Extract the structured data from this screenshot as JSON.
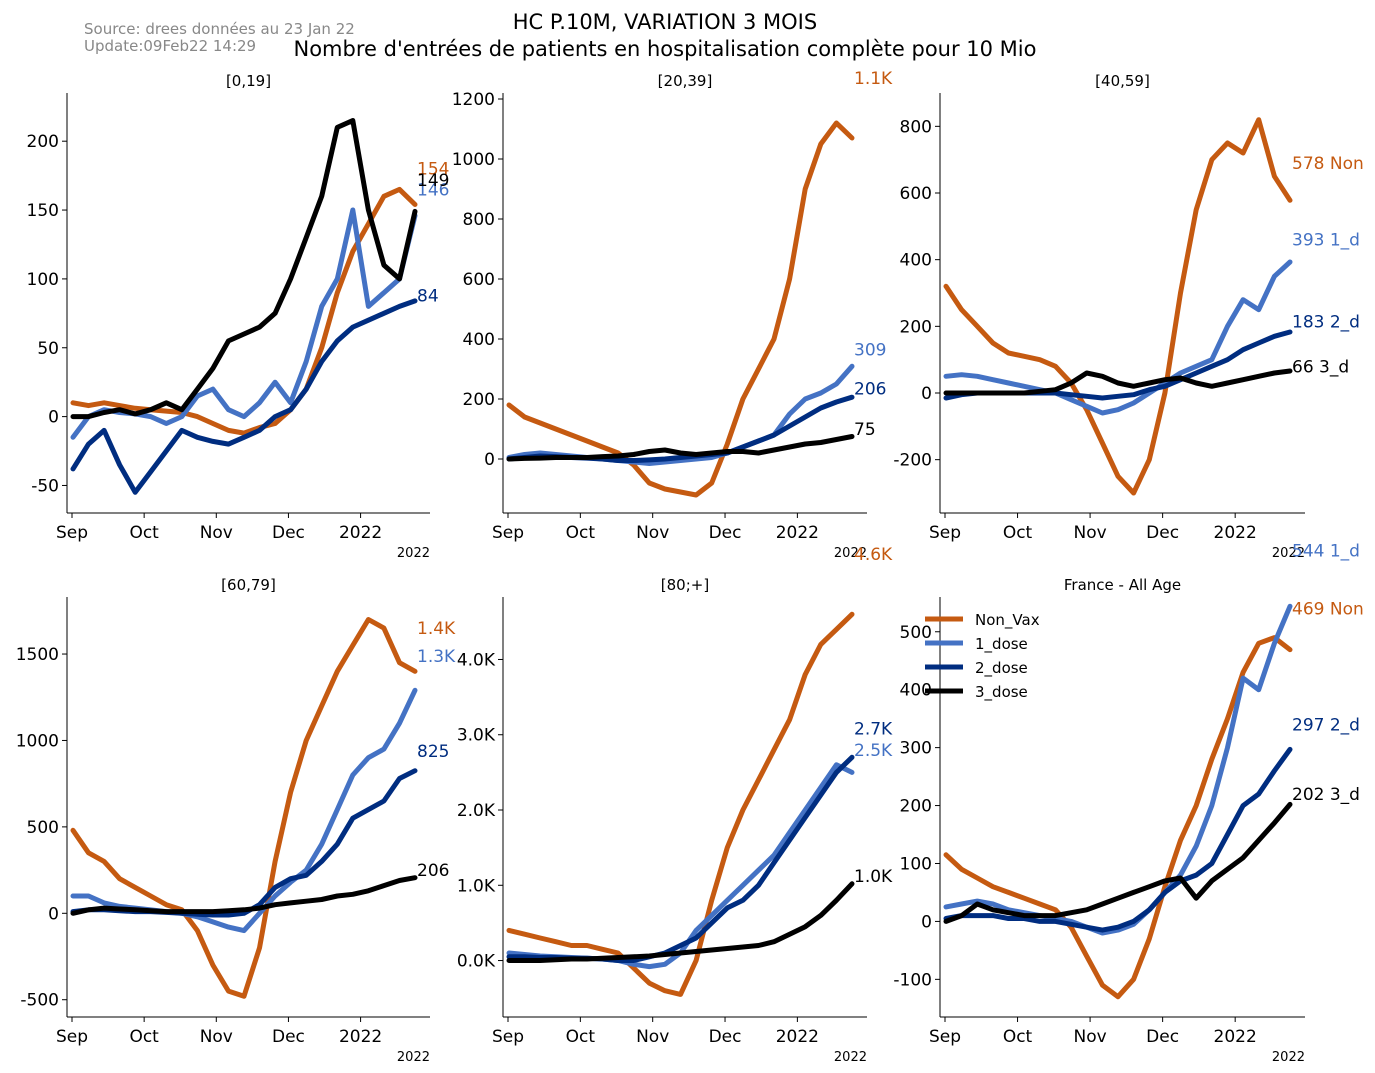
{
  "header": {
    "source_line1": "Source: drees données au 23 Jan 22",
    "source_line2": "Update:09Feb22 14:29",
    "title_line1": "HC P.10M, VARIATION 3 MOIS",
    "title_line2": "Nombre d'entrées de patients en hospitalisation complète pour 10 Mio"
  },
  "colors": {
    "Non_Vax": "#c55a11",
    "1_dose": "#4472c4",
    "2_dose": "#002d80",
    "3_dose": "#000000"
  },
  "legend": {
    "placement": "upper-left of France - All Age panel",
    "entries": [
      "Non_Vax",
      "1_dose",
      "2_dose",
      "3_dose"
    ]
  },
  "chart_data": [
    {
      "type": "line",
      "title": "[0,19]",
      "x_ticks": [
        "Sep",
        "Oct",
        "Nov",
        "Dec",
        "2022"
      ],
      "x_offset_label": "2022",
      "ylim": [
        -70,
        235
      ],
      "y_ticks": [
        {
          "v": -50,
          "l": "-50"
        },
        {
          "v": 0,
          "l": "0"
        },
        {
          "v": 50,
          "l": "50"
        },
        {
          "v": 100,
          "l": "100"
        },
        {
          "v": 150,
          "l": "150"
        },
        {
          "v": 200,
          "l": "200"
        }
      ],
      "series": [
        {
          "name": "Non_Vax",
          "values": [
            10,
            8,
            10,
            8,
            6,
            5,
            4,
            3,
            0,
            -5,
            -10,
            -12,
            -8,
            -5,
            5,
            20,
            50,
            90,
            120,
            140,
            160,
            165,
            154
          ],
          "end_label": "154",
          "end_label_value": 180
        },
        {
          "name": "1_dose",
          "values": [
            -15,
            0,
            5,
            3,
            2,
            0,
            -5,
            0,
            15,
            20,
            5,
            0,
            10,
            25,
            10,
            40,
            80,
            100,
            150,
            80,
            90,
            100,
            146
          ],
          "end_label": "146",
          "end_label_value": 165
        },
        {
          "name": "2_dose",
          "values": [
            -38,
            -20,
            -10,
            -35,
            -55,
            -40,
            -25,
            -10,
            -15,
            -18,
            -20,
            -15,
            -10,
            0,
            5,
            20,
            40,
            55,
            65,
            70,
            75,
            80,
            84
          ],
          "end_label": "84",
          "end_label_value": 88
        },
        {
          "name": "3_dose",
          "values": [
            0,
            0,
            3,
            5,
            2,
            5,
            10,
            5,
            20,
            35,
            55,
            60,
            65,
            75,
            100,
            130,
            160,
            210,
            215,
            150,
            110,
            100,
            149
          ],
          "end_label": "149",
          "end_label_value": 172
        }
      ]
    },
    {
      "type": "line",
      "title": "[20,39]",
      "x_ticks": [
        "Sep",
        "Oct",
        "Nov",
        "Dec",
        "2022"
      ],
      "x_offset_label": "2022",
      "ylim": [
        -180,
        1220
      ],
      "y_ticks": [
        {
          "v": 0,
          "l": "0"
        },
        {
          "v": 200,
          "l": "200"
        },
        {
          "v": 400,
          "l": "400"
        },
        {
          "v": 600,
          "l": "600"
        },
        {
          "v": 800,
          "l": "800"
        },
        {
          "v": 1000,
          "l": "1000"
        },
        {
          "v": 1200,
          "l": "1200"
        }
      ],
      "series": [
        {
          "name": "Non_Vax",
          "values": [
            180,
            140,
            120,
            100,
            80,
            60,
            40,
            20,
            -20,
            -80,
            -100,
            -110,
            -120,
            -80,
            50,
            200,
            300,
            400,
            600,
            900,
            1050,
            1120,
            1070
          ],
          "end_label": "1.1K",
          "end_label_value": 1270
        },
        {
          "name": "1_dose",
          "values": [
            5,
            15,
            20,
            15,
            10,
            5,
            0,
            -5,
            -10,
            -15,
            -10,
            -5,
            0,
            5,
            20,
            40,
            60,
            80,
            150,
            200,
            220,
            250,
            309
          ],
          "end_label": "309",
          "end_label_value": 365
        },
        {
          "name": "2_dose",
          "values": [
            0,
            5,
            10,
            8,
            5,
            3,
            0,
            -5,
            -5,
            -3,
            0,
            5,
            10,
            15,
            20,
            40,
            60,
            80,
            110,
            140,
            170,
            190,
            206
          ],
          "end_label": "206",
          "end_label_value": 235
        },
        {
          "name": "3_dose",
          "values": [
            0,
            2,
            3,
            5,
            5,
            5,
            8,
            10,
            15,
            25,
            30,
            20,
            15,
            20,
            25,
            25,
            20,
            30,
            40,
            50,
            55,
            65,
            75
          ],
          "end_label": "75",
          "end_label_value": 100
        }
      ]
    },
    {
      "type": "line",
      "title": "[40,59]",
      "x_ticks": [
        "Sep",
        "Oct",
        "Nov",
        "Dec",
        "2022"
      ],
      "x_offset_label": "2022",
      "ylim": [
        -360,
        900
      ],
      "y_ticks": [
        {
          "v": -200,
          "l": "-200"
        },
        {
          "v": 0,
          "l": "0"
        },
        {
          "v": 200,
          "l": "200"
        },
        {
          "v": 400,
          "l": "400"
        },
        {
          "v": 600,
          "l": "600"
        },
        {
          "v": 800,
          "l": "800"
        }
      ],
      "series": [
        {
          "name": "Non_Vax",
          "values": [
            320,
            250,
            200,
            150,
            120,
            110,
            100,
            80,
            30,
            -50,
            -150,
            -250,
            -300,
            -200,
            0,
            300,
            550,
            700,
            750,
            720,
            820,
            650,
            578
          ],
          "end_label": "578 Non",
          "end_label_value": 690
        },
        {
          "name": "1_dose",
          "values": [
            50,
            55,
            50,
            40,
            30,
            20,
            10,
            0,
            -20,
            -40,
            -60,
            -50,
            -30,
            0,
            30,
            60,
            80,
            100,
            200,
            280,
            250,
            350,
            393
          ],
          "end_label": "393 1_d",
          "end_label_value": 460
        },
        {
          "name": "2_dose",
          "values": [
            -15,
            -5,
            0,
            0,
            0,
            0,
            0,
            0,
            -5,
            -10,
            -15,
            -10,
            -5,
            10,
            20,
            40,
            60,
            80,
            100,
            130,
            150,
            170,
            183
          ],
          "end_label": "183 2_d",
          "end_label_value": 215
        },
        {
          "name": "3_dose",
          "values": [
            0,
            0,
            0,
            0,
            0,
            0,
            5,
            10,
            30,
            60,
            50,
            30,
            20,
            30,
            40,
            45,
            30,
            20,
            30,
            40,
            50,
            60,
            66
          ],
          "end_label": "66 3_d",
          "end_label_value": 80
        }
      ]
    },
    {
      "type": "line",
      "title": "[60,79]",
      "x_ticks": [
        "Sep",
        "Oct",
        "Nov",
        "Dec",
        "2022"
      ],
      "x_offset_label": "2022",
      "ylim": [
        -600,
        1830
      ],
      "y_ticks": [
        {
          "v": -500,
          "l": "-500"
        },
        {
          "v": 0,
          "l": "0"
        },
        {
          "v": 500,
          "l": "500"
        },
        {
          "v": 1000,
          "l": "1000"
        },
        {
          "v": 1500,
          "l": "1500"
        }
      ],
      "series": [
        {
          "name": "Non_Vax",
          "values": [
            480,
            350,
            300,
            200,
            150,
            100,
            50,
            20,
            -100,
            -300,
            -450,
            -480,
            -200,
            300,
            700,
            1000,
            1200,
            1400,
            1550,
            1700,
            1650,
            1450,
            1400
          ],
          "end_label": "1.4K",
          "end_label_value": 1650
        },
        {
          "name": "1_dose",
          "values": [
            100,
            100,
            60,
            40,
            30,
            20,
            10,
            0,
            -20,
            -50,
            -80,
            -100,
            0,
            100,
            180,
            250,
            400,
            600,
            800,
            900,
            950,
            1100,
            1290
          ],
          "end_label": "1.3K",
          "end_label_value": 1490
        },
        {
          "name": "2_dose",
          "values": [
            10,
            20,
            20,
            15,
            10,
            10,
            5,
            0,
            -5,
            -10,
            -10,
            0,
            50,
            150,
            200,
            220,
            300,
            400,
            550,
            600,
            650,
            780,
            825
          ],
          "end_label": "825",
          "end_label_value": 940
        },
        {
          "name": "3_dose",
          "values": [
            0,
            20,
            30,
            25,
            20,
            15,
            10,
            10,
            10,
            10,
            15,
            20,
            30,
            50,
            60,
            70,
            80,
            100,
            110,
            130,
            160,
            190,
            206
          ],
          "end_label": "206",
          "end_label_value": 250
        }
      ]
    },
    {
      "type": "line",
      "title": "[80;+]",
      "x_ticks": [
        "Sep",
        "Oct",
        "Nov",
        "Dec",
        "2022"
      ],
      "x_offset_label": "2022",
      "ylim": [
        -750,
        4830
      ],
      "y_ticks": [
        {
          "v": 0,
          "l": "0.0K"
        },
        {
          "v": 1000,
          "l": "1.0K"
        },
        {
          "v": 2000,
          "l": "2.0K"
        },
        {
          "v": 3000,
          "l": "3.0K"
        },
        {
          "v": 4000,
          "l": "4.0K"
        }
      ],
      "series": [
        {
          "name": "Non_Vax",
          "values": [
            400,
            350,
            300,
            250,
            200,
            200,
            150,
            100,
            -100,
            -300,
            -400,
            -450,
            0,
            800,
            1500,
            2000,
            2400,
            2800,
            3200,
            3800,
            4200,
            4400,
            4600
          ],
          "end_label": "4.6K",
          "end_label_value": 5400
        },
        {
          "name": "1_dose",
          "values": [
            100,
            80,
            60,
            50,
            40,
            30,
            20,
            0,
            -50,
            -80,
            -50,
            100,
            400,
            600,
            800,
            1000,
            1200,
            1400,
            1700,
            2000,
            2300,
            2600,
            2500
          ],
          "end_label": "2.5K",
          "end_label_value": 2800
        },
        {
          "name": "2_dose",
          "values": [
            50,
            50,
            40,
            40,
            30,
            30,
            20,
            0,
            0,
            50,
            100,
            200,
            300,
            500,
            700,
            800,
            1000,
            1300,
            1600,
            1900,
            2200,
            2500,
            2700
          ],
          "end_label": "2.7K",
          "end_label_value": 3080
        },
        {
          "name": "3_dose",
          "values": [
            0,
            0,
            0,
            10,
            20,
            20,
            30,
            40,
            50,
            60,
            80,
            100,
            120,
            140,
            160,
            180,
            200,
            250,
            350,
            450,
            600,
            800,
            1020
          ],
          "end_label": "1.0K",
          "end_label_value": 1120
        }
      ]
    },
    {
      "type": "line",
      "title": "France - All Age",
      "x_ticks": [
        "Sep",
        "Oct",
        "Nov",
        "Dec",
        "2022"
      ],
      "x_offset_label": "2022",
      "ylim": [
        -165,
        560
      ],
      "y_ticks": [
        {
          "v": -100,
          "l": "-100"
        },
        {
          "v": 0,
          "l": "0"
        },
        {
          "v": 100,
          "l": "100"
        },
        {
          "v": 200,
          "l": "200"
        },
        {
          "v": 300,
          "l": "300"
        },
        {
          "v": 400,
          "l": "400"
        },
        {
          "v": 500,
          "l": "500"
        }
      ],
      "series": [
        {
          "name": "Non_Vax",
          "values": [
            115,
            90,
            75,
            60,
            50,
            40,
            30,
            20,
            -10,
            -60,
            -110,
            -130,
            -100,
            -30,
            60,
            140,
            200,
            280,
            350,
            430,
            480,
            490,
            469
          ],
          "end_label": "469 Non",
          "end_label_value": 540
        },
        {
          "name": "1_dose",
          "values": [
            25,
            30,
            35,
            30,
            20,
            15,
            10,
            5,
            0,
            -10,
            -20,
            -15,
            -5,
            20,
            50,
            80,
            130,
            200,
            300,
            420,
            400,
            480,
            544
          ],
          "end_label": "544 1_d",
          "end_label_value": 640
        },
        {
          "name": "2_dose",
          "values": [
            5,
            10,
            10,
            10,
            5,
            5,
            0,
            0,
            -5,
            -10,
            -15,
            -10,
            0,
            20,
            50,
            70,
            80,
            100,
            150,
            200,
            220,
            260,
            297
          ],
          "end_label": "297 2_d",
          "end_label_value": 340
        },
        {
          "name": "3_dose",
          "values": [
            0,
            10,
            30,
            20,
            15,
            10,
            10,
            10,
            15,
            20,
            30,
            40,
            50,
            60,
            70,
            75,
            40,
            70,
            90,
            110,
            140,
            170,
            202
          ],
          "end_label": "202 3_d",
          "end_label_value": 220
        }
      ]
    }
  ]
}
